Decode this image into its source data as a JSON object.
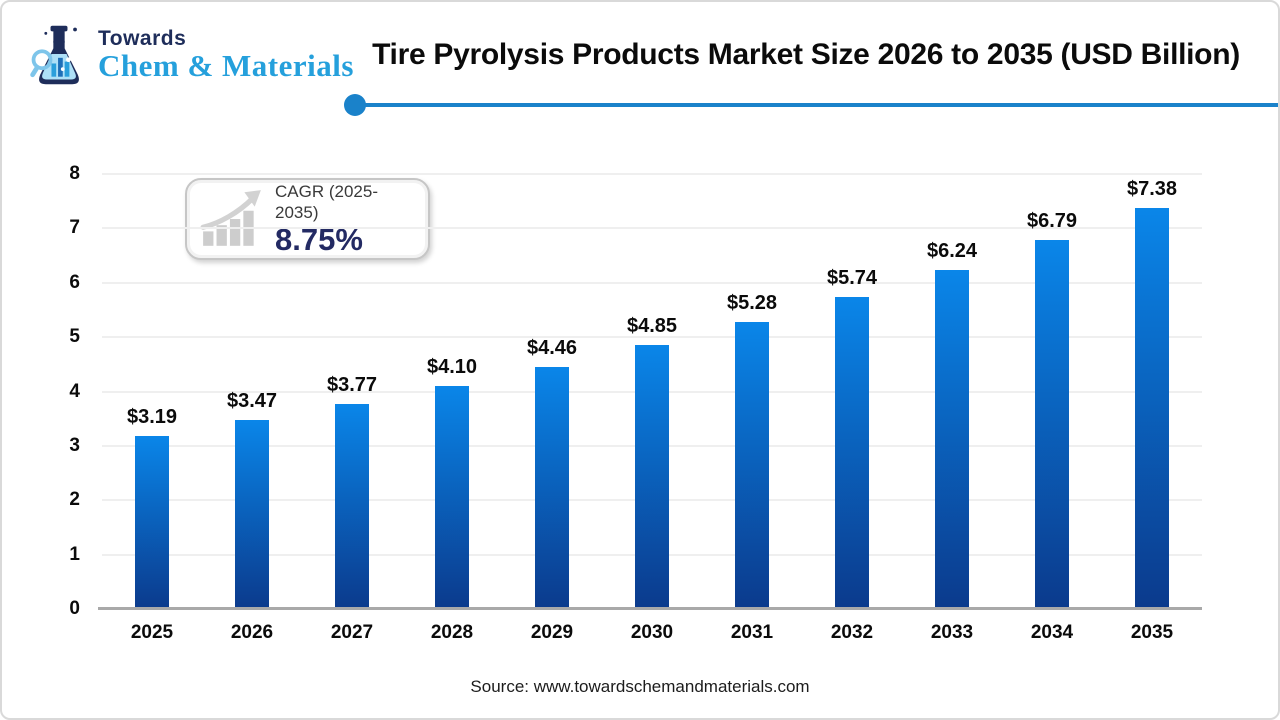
{
  "header": {
    "logo_top": "Towards",
    "logo_bottom": "Chem & Materials",
    "title": "Tire Pyrolysis Products Market Size 2026 to 2035  (USD Billion)"
  },
  "cagr_badge": {
    "label": "CAGR (2025-2035)",
    "value": "8.75%"
  },
  "chart_data": {
    "type": "bar",
    "title": "Tire Pyrolysis Products Market Size 2026 to 2035 (USD Billion)",
    "categories": [
      "2025",
      "2026",
      "2027",
      "2028",
      "2029",
      "2030",
      "2031",
      "2032",
      "2033",
      "2034",
      "2035"
    ],
    "values": [
      3.19,
      3.47,
      3.77,
      4.1,
      4.46,
      4.85,
      5.28,
      5.74,
      6.24,
      6.79,
      7.38
    ],
    "value_labels": [
      "$3.19",
      "$3.47",
      "$3.77",
      "$4.10",
      "$4.46",
      "$4.85",
      "$5.28",
      "$5.74",
      "$6.24",
      "$6.79",
      "$7.38"
    ],
    "xlabel": "",
    "ylabel": "",
    "ylim": [
      0,
      8
    ],
    "yticks": [
      0,
      1,
      2,
      3,
      4,
      5,
      6,
      7,
      8
    ],
    "grid": true,
    "legend_position": "none",
    "unit": "USD Billion"
  },
  "colors": {
    "bar_gradient_top": "#0a86e9",
    "bar_gradient_bottom": "#0b3a8c",
    "divider_blue": "#1a82ca",
    "logo_navy": "#1e2d5a",
    "logo_blue": "#25a0dc",
    "cagr_value_navy": "#232a63",
    "gridline": "#efefef",
    "axis_baseline": "#a9a9a9"
  },
  "footer": {
    "source": "Source: www.towardschemandmaterials.com"
  }
}
